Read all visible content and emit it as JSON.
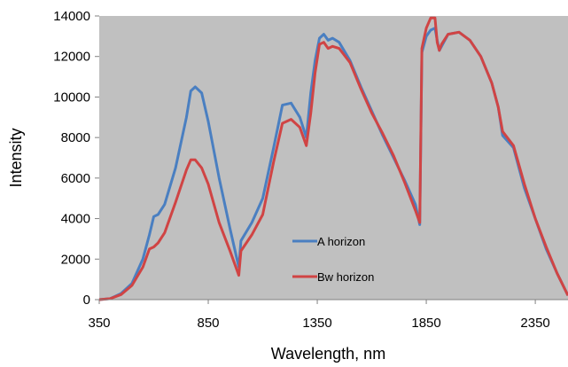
{
  "chart_data": {
    "type": "line",
    "title": "",
    "xlabel": "Wavelength, nm",
    "ylabel": "Intensity",
    "xlim": [
      350,
      2500
    ],
    "ylim": [
      0,
      14000
    ],
    "x_ticks": [
      "350",
      "850",
      "1350",
      "1850",
      "2350"
    ],
    "y_ticks": [
      "0",
      "2000",
      "4000",
      "6000",
      "8000",
      "10000",
      "12000",
      "14000"
    ],
    "grid": false,
    "plot_background": "#c0c0c0",
    "legend_position": "center-bottom",
    "series": [
      {
        "name": "A horizon",
        "color": "#4a7fc1",
        "x": [
          350,
          400,
          450,
          500,
          550,
          580,
          600,
          620,
          650,
          700,
          750,
          770,
          790,
          820,
          850,
          900,
          950,
          990,
          1000,
          1050,
          1100,
          1150,
          1190,
          1230,
          1270,
          1300,
          1320,
          1340,
          1360,
          1380,
          1400,
          1420,
          1450,
          1500,
          1550,
          1600,
          1650,
          1700,
          1750,
          1800,
          1820,
          1830,
          1850,
          1870,
          1890,
          1900,
          1910,
          1920,
          1950,
          2000,
          2050,
          2100,
          2150,
          2180,
          2200,
          2250,
          2300,
          2350,
          2400,
          2450,
          2500
        ],
        "y": [
          0,
          50,
          300,
          800,
          2000,
          3200,
          4100,
          4200,
          4700,
          6500,
          9000,
          10300,
          10500,
          10200,
          8800,
          6000,
          3500,
          1600,
          2900,
          3800,
          5000,
          7500,
          9600,
          9700,
          9000,
          8000,
          10200,
          11800,
          12900,
          13100,
          12800,
          12900,
          12700,
          11800,
          10500,
          9300,
          8100,
          7000,
          5900,
          4700,
          3700,
          12200,
          13000,
          13300,
          13400,
          12800,
          12300,
          12500,
          13100,
          13200,
          12800,
          12000,
          10700,
          9500,
          8100,
          7500,
          5500,
          4000,
          2500,
          1300,
          200
        ]
      },
      {
        "name": "Bw horizon",
        "color": "#d04444",
        "x": [
          350,
          400,
          450,
          500,
          550,
          580,
          600,
          620,
          650,
          700,
          750,
          770,
          790,
          820,
          850,
          900,
          950,
          990,
          1000,
          1050,
          1100,
          1150,
          1190,
          1230,
          1270,
          1300,
          1320,
          1340,
          1360,
          1380,
          1400,
          1420,
          1450,
          1500,
          1550,
          1600,
          1650,
          1700,
          1750,
          1800,
          1820,
          1830,
          1850,
          1870,
          1890,
          1900,
          1910,
          1920,
          1950,
          2000,
          2050,
          2100,
          2150,
          2180,
          2200,
          2250,
          2300,
          2350,
          2400,
          2450,
          2500
        ],
        "y": [
          0,
          50,
          250,
          700,
          1600,
          2500,
          2600,
          2800,
          3300,
          4800,
          6400,
          6900,
          6900,
          6500,
          5700,
          3800,
          2400,
          1200,
          2400,
          3200,
          4200,
          6800,
          8700,
          8900,
          8500,
          7600,
          9200,
          11200,
          12600,
          12700,
          12400,
          12500,
          12400,
          11700,
          10400,
          9200,
          8200,
          7100,
          5800,
          4400,
          3800,
          12400,
          13400,
          13900,
          13900,
          12700,
          12300,
          12600,
          13100,
          13200,
          12800,
          12000,
          10700,
          9500,
          8300,
          7600,
          5700,
          4000,
          2600,
          1300,
          200
        ]
      }
    ]
  }
}
